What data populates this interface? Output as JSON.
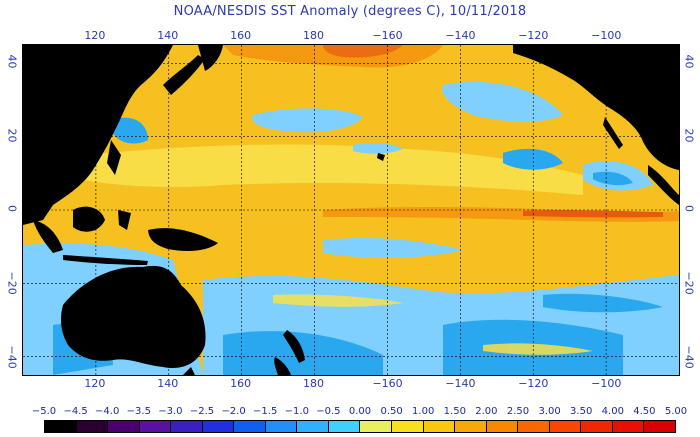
{
  "title": "NOAA/NESDIS SST Anomaly (degrees C), 10/11/2018",
  "map": {
    "lon_min": 100,
    "lon_max": 280,
    "lat_min": -45,
    "lat_max": 45,
    "lon_ticks": [
      {
        "value": 120,
        "label": "120"
      },
      {
        "value": 140,
        "label": "140"
      },
      {
        "value": 160,
        "label": "160"
      },
      {
        "value": 180,
        "label": "180"
      },
      {
        "value": 200,
        "label": "−160"
      },
      {
        "value": 220,
        "label": "−140"
      },
      {
        "value": 240,
        "label": "−120"
      },
      {
        "value": 260,
        "label": "−100"
      }
    ],
    "lat_ticks": [
      {
        "value": 40,
        "label": "40"
      },
      {
        "value": 20,
        "label": "20"
      },
      {
        "value": 0,
        "label": "0"
      },
      {
        "value": -20,
        "label": "−20"
      },
      {
        "value": -40,
        "label": "−40"
      }
    ],
    "land_color": "#000000",
    "gridline_color": "#000000"
  },
  "colorbar": {
    "labels": [
      "−5.0",
      "−4.5",
      "−4.0",
      "−3.5",
      "−3.0",
      "−2.5",
      "−2.0",
      "−1.5",
      "−1.0",
      "−0.5",
      "0.00",
      "0.50",
      "1.00",
      "1.50",
      "2.00",
      "2.50",
      "3.00",
      "3.50",
      "4.00",
      "4.50",
      "5.00"
    ],
    "colors": [
      "#000000",
      "#2a0030",
      "#4b0070",
      "#5a10a0",
      "#3a20c0",
      "#2030e0",
      "#1060f0",
      "#2090ff",
      "#30b0ff",
      "#40d0ff",
      "#e8f060",
      "#f8e020",
      "#f8c810",
      "#f8a808",
      "#f88800",
      "#f86800",
      "#f84800",
      "#f02800",
      "#e81000",
      "#d80000"
    ]
  },
  "legend_colors": {
    "warm_base": "#f5c020",
    "warm_light": "#f8e04a",
    "warm_orange": "#f59a10",
    "warm_red": "#e85a10",
    "cool_light": "#7fd0ff",
    "cool_mid": "#29a8f0",
    "cool_deep": "#1a70e0"
  }
}
